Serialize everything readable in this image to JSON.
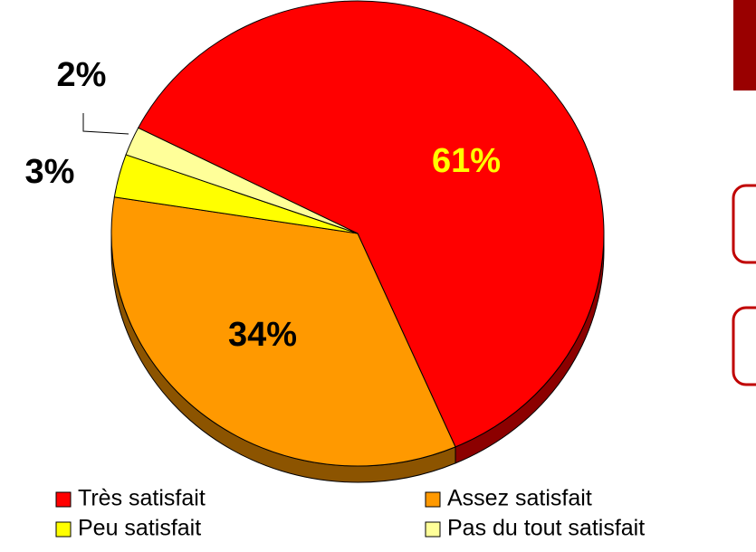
{
  "chart_data": {
    "type": "pie3d",
    "categories": [
      "Très satisfait",
      "Assez satisfait",
      "Peu satisfait",
      "Pas du tout satisfait"
    ],
    "values": [
      61,
      34,
      3,
      2
    ],
    "value_labels": [
      "61%",
      "34%",
      "3%",
      "2%"
    ],
    "colors": [
      "#ff0000",
      "#ff9900",
      "#ffff00",
      "#ffff99"
    ]
  }
}
